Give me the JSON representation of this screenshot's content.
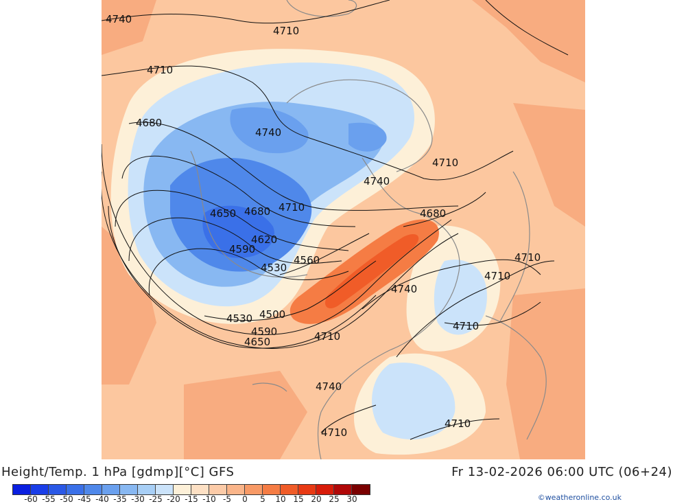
{
  "title": "Height/Temp. 1 hPa [gdmp][°C] GFS",
  "valid_time": "Fr 13-02-2026 06:00 UTC (06+24)",
  "credit": "©weatheronline.co.uk",
  "colorbar": {
    "ticks": [
      "-60",
      "-55",
      "-50",
      "-45",
      "-40",
      "-35",
      "-30",
      "-25",
      "-20",
      "-15",
      "-10",
      "-5",
      "0",
      "5",
      "10",
      "15",
      "20",
      "25",
      "30"
    ],
    "colors": [
      "#0a1fe0",
      "#1a3ee8",
      "#2a58e6",
      "#3a70e8",
      "#4f88ea",
      "#6aa0ee",
      "#88b8f2",
      "#a8cff6",
      "#cbe3fa",
      "#fdf0d8",
      "#fde0c4",
      "#fccba8",
      "#fab58a",
      "#f89a66",
      "#f57c44",
      "#f05c28",
      "#e83a14",
      "#d81c0a",
      "#b00808",
      "#7a0000"
    ]
  },
  "contour_labels": [
    "4740",
    "4710",
    "4710",
    "4680",
    "4740",
    "4710",
    "4740",
    "4680",
    "4650",
    "4680",
    "4710",
    "4620",
    "4590",
    "4560",
    "4530",
    "4710",
    "4710",
    "4740",
    "4530",
    "4500",
    "4590",
    "4650",
    "4710",
    "4710",
    "4740",
    "4710",
    "4710"
  ],
  "colors": {
    "background": "#fcc79f",
    "warm_dark": "#f5a070",
    "pale": "#fdf0d8",
    "cold_light": "#cbe3fa",
    "cold_mid": "#88b8f2",
    "cold_deep": "#3a70e8",
    "hot": "#f05c28",
    "coast": "#8a8a8a",
    "contour": "#111111"
  }
}
